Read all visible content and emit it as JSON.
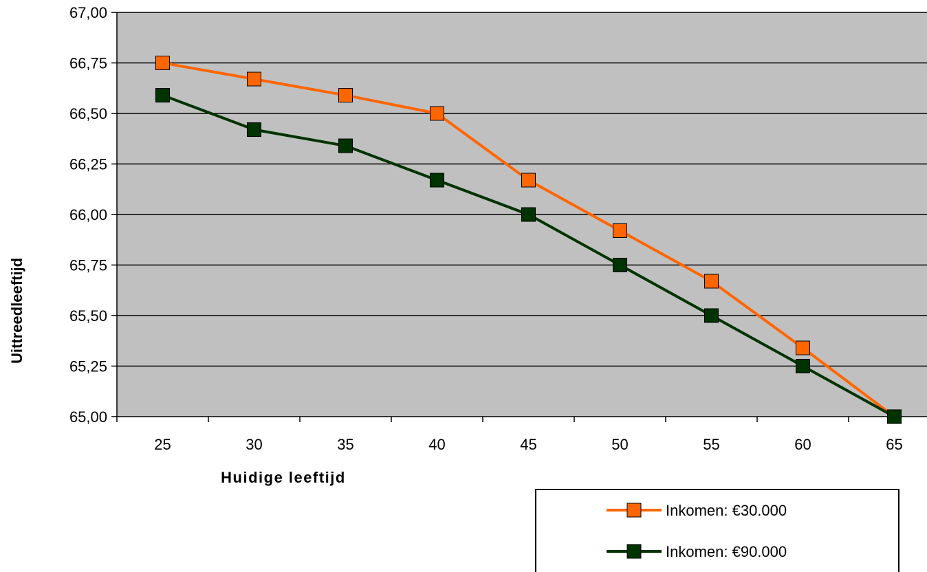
{
  "chart_data": {
    "type": "line",
    "xlabel": "Huidige leeftijd",
    "ylabel": "Uittreedleeftijd",
    "categories": [
      "25",
      "30",
      "35",
      "40",
      "45",
      "50",
      "55",
      "60",
      "65"
    ],
    "ylim": [
      65.0,
      67.0
    ],
    "yticks": [
      "65,00",
      "65,25",
      "65,50",
      "65,75",
      "66,00",
      "66,25",
      "66,50",
      "66,75",
      "67,00"
    ],
    "ytick_values": [
      65.0,
      65.25,
      65.5,
      65.75,
      66.0,
      66.25,
      66.5,
      66.75,
      67.0
    ],
    "grid": true,
    "legend_position": "bottom-right",
    "plot_background": "#c0c0c0",
    "series": [
      {
        "name": "Inkomen: €30.000",
        "color": "#ff6600",
        "marker": "square",
        "values": [
          66.75,
          66.67,
          66.59,
          66.5,
          66.17,
          65.92,
          65.67,
          65.34,
          65.0
        ]
      },
      {
        "name": "Inkomen: €90.000",
        "color": "#003300",
        "marker": "square",
        "values": [
          66.59,
          66.42,
          66.34,
          66.17,
          66.0,
          65.75,
          65.5,
          65.25,
          65.0
        ]
      }
    ]
  }
}
